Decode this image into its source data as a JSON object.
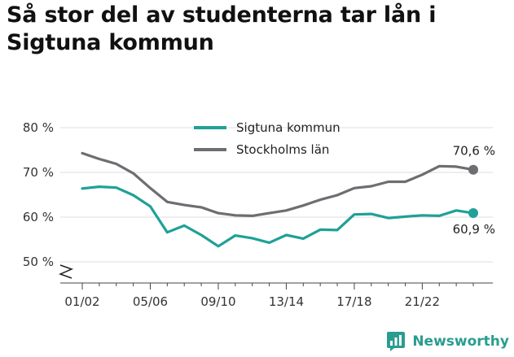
{
  "title": "Så stor del av studenterna tar lån i Sigtuna kommun",
  "brand": {
    "name": "Newsworthy"
  },
  "colors": {
    "sigtuna": "#1fa197",
    "stockholm": "#6d6d72",
    "grid": "#dcdcdc"
  },
  "chart_data": {
    "type": "line",
    "title": "Så stor del av studenterna tar lån i Sigtuna kommun",
    "xlabel": "",
    "ylabel": "",
    "ylim": [
      50,
      80
    ],
    "yticks": [
      "50 %",
      "60 %",
      "70 %",
      "80 %"
    ],
    "y_axis_break": true,
    "grid": true,
    "legend_position": "top-center",
    "x_tick_labels": [
      "01/02",
      "05/06",
      "09/10",
      "13/14",
      "17/18",
      "21/22"
    ],
    "x": [
      "01/02",
      "02/03",
      "03/04",
      "04/05",
      "05/06",
      "06/07",
      "07/08",
      "08/09",
      "09/10",
      "10/11",
      "11/12",
      "12/13",
      "13/14",
      "14/15",
      "15/16",
      "16/17",
      "17/18",
      "18/19",
      "19/20",
      "20/21",
      "21/22",
      "22/23",
      "23/24",
      "24/25"
    ],
    "series": [
      {
        "name": "Sigtuna kommun",
        "color": "#1fa197",
        "values": [
          66.4,
          66.8,
          66.6,
          64.9,
          62.4,
          56.6,
          58.1,
          56.0,
          53.5,
          55.9,
          55.3,
          54.3,
          56.0,
          55.2,
          57.2,
          57.1,
          60.6,
          60.7,
          59.8,
          60.1,
          60.4,
          60.3,
          61.5,
          60.9
        ],
        "end_label": "60,9 %"
      },
      {
        "name": "Stockholms län",
        "color": "#6d6d72",
        "values": [
          74.3,
          73.0,
          71.9,
          69.8,
          66.5,
          63.4,
          62.7,
          62.2,
          60.9,
          60.4,
          60.3,
          60.9,
          61.5,
          62.6,
          63.9,
          64.9,
          66.5,
          66.9,
          67.9,
          67.9,
          69.5,
          71.4,
          71.3,
          70.6
        ],
        "end_label": "70,6 %"
      }
    ]
  }
}
